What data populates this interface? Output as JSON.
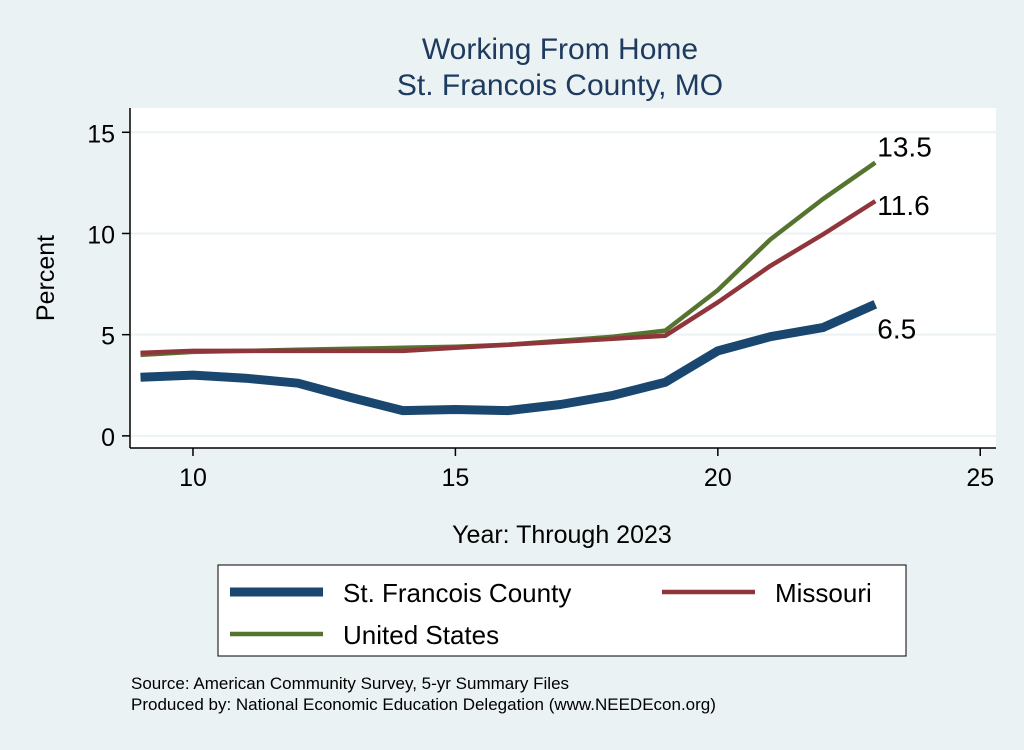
{
  "chart_data": {
    "type": "line",
    "title": "Working From Home",
    "subtitle": "St. Francois County, MO",
    "xlabel": "Year: Through 2023",
    "ylabel": "Percent",
    "xlim": [
      8.8,
      25.3
    ],
    "ylim": [
      -0.6,
      16.2
    ],
    "xticks": [
      10,
      15,
      20,
      25
    ],
    "yticks": [
      0,
      5,
      10,
      15
    ],
    "x": [
      9,
      10,
      11,
      12,
      13,
      14,
      15,
      16,
      17,
      18,
      19,
      20,
      21,
      22,
      23
    ],
    "series": [
      {
        "name": "St. Francois County",
        "color": "#1a476f",
        "width": 9,
        "values": [
          2.9,
          3.0,
          2.85,
          2.6,
          1.9,
          1.25,
          1.3,
          1.25,
          1.55,
          2.0,
          2.65,
          4.2,
          4.9,
          5.35,
          6.5
        ],
        "end_label": "6.5",
        "label_pos": "below"
      },
      {
        "name": "Missouri",
        "color": "#90353b",
        "width": 4.5,
        "values": [
          4.1,
          4.2,
          4.2,
          4.2,
          4.2,
          4.2,
          4.35,
          4.5,
          4.65,
          4.8,
          4.95,
          6.6,
          8.4,
          9.95,
          11.6
        ],
        "end_label": "11.6",
        "label_pos": "right"
      },
      {
        "name": "United States",
        "color": "#55752f",
        "width": 4.5,
        "values": [
          4.0,
          4.15,
          4.2,
          4.25,
          4.3,
          4.35,
          4.4,
          4.5,
          4.7,
          4.9,
          5.2,
          7.2,
          9.7,
          11.7,
          13.5
        ],
        "end_label": "13.5",
        "label_pos": "above"
      }
    ],
    "grid": true,
    "legend_position": "bottom"
  },
  "notes": {
    "source": "Source: American Community Survey, 5-yr Summary Files",
    "produced": "Produced by: National Economic Education Delegation (www.NEEDEcon.org)"
  }
}
